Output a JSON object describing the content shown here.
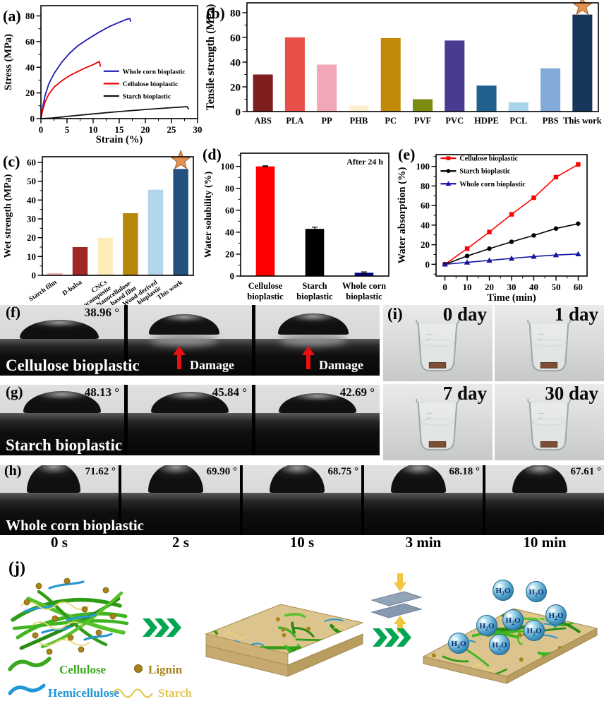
{
  "colors": {
    "accent_red": "#e81111",
    "arrow_green": "#00a651",
    "star_fill": "#df9254",
    "star_edge": "#a55f26",
    "slab_tan": "#dcc48e",
    "h2o_sphere": "#4a9cc6"
  },
  "panels": {
    "a": {
      "label": "(a)"
    },
    "b": {
      "label": "(b)"
    },
    "c": {
      "label": "(c)"
    },
    "d": {
      "label": "(d)"
    },
    "e": {
      "label": "(e)"
    },
    "f": {
      "label": "(f)",
      "name": "Cellulose bioplastic",
      "frames": [
        {
          "angle": "38.96 °"
        },
        {
          "damage": "Damage"
        },
        {
          "damage": "Damage"
        }
      ]
    },
    "g": {
      "label": "(g)",
      "name": "Starch bioplastic",
      "frames": [
        {
          "angle": "48.13 °"
        },
        {
          "angle": "45.84 °"
        },
        {
          "angle": "42.69 °"
        }
      ]
    },
    "h": {
      "label": "(h)",
      "name": "Whole corn bioplastic",
      "frames": [
        {
          "angle": "71.62 °",
          "time": "0 s"
        },
        {
          "angle": "69.90 °",
          "time": "2 s"
        },
        {
          "angle": "68.75 °",
          "time": "10 s"
        },
        {
          "angle": "68.18 °",
          "time": "3 min"
        },
        {
          "angle": "67.61 °",
          "time": "10 min"
        }
      ]
    },
    "i": {
      "label": "(i)",
      "cells": [
        {
          "day": "0 day"
        },
        {
          "day": "1 day"
        },
        {
          "day": "7 day"
        },
        {
          "day": "30 day"
        }
      ]
    },
    "j": {
      "label": "(j)",
      "h2o": "H₂O",
      "legend": [
        {
          "name": "Cellulose",
          "color": "#3aa81e"
        },
        {
          "name": "Lignin",
          "color": "#a8821a"
        },
        {
          "name": "Hemicellulose",
          "color": "#2196d8"
        },
        {
          "name": "Starch",
          "color": "#e3c94e"
        }
      ]
    }
  },
  "chart_data": [
    {
      "id": "a",
      "type": "line",
      "title": "",
      "xlabel": "Strain (%)",
      "ylabel": "Stress (MPa)",
      "xlim": [
        0,
        30
      ],
      "ylim": [
        0,
        88
      ],
      "xticks": [
        0,
        5,
        10,
        15,
        20,
        25,
        30
      ],
      "yticks": [
        0,
        20,
        40,
        60,
        80
      ],
      "x_minor": 2.5,
      "y_minor": 10,
      "legend_position": "right-middle",
      "series": [
        {
          "name": "Whole corn bioplastic",
          "color": "#1c1cb4",
          "x": [
            0,
            0.3,
            0.8,
            1.5,
            2.5,
            4,
            5.5,
            7,
            9,
            11,
            13,
            15,
            16.5,
            17,
            17.2
          ],
          "y": [
            0,
            8,
            18,
            27,
            35,
            44,
            51,
            56.5,
            62,
            67,
            71.5,
            75,
            77.5,
            78,
            75.5
          ]
        },
        {
          "name": "Cellulose bioplastic",
          "color": "#ee0000",
          "x": [
            0,
            0.3,
            0.8,
            1.5,
            2.5,
            4,
            5.5,
            7,
            8.5,
            10,
            11.2,
            11.4
          ],
          "y": [
            0,
            6,
            13,
            19,
            24.5,
            29.5,
            33.5,
            36.5,
            39.5,
            42,
            44.5,
            40.5
          ]
        },
        {
          "name": "Starch bioplastic",
          "color": "#141414",
          "x": [
            0,
            2,
            5,
            10,
            15,
            20,
            25,
            28,
            28.3
          ],
          "y": [
            0,
            0.4,
            1.7,
            3.7,
            5.5,
            7.1,
            8.5,
            9.3,
            7.2
          ]
        }
      ]
    },
    {
      "id": "b",
      "type": "bar",
      "title": "",
      "ylabel": "Tensile strength (MPa)",
      "ylim": [
        0,
        88
      ],
      "yticks": [
        0,
        20,
        40,
        60,
        80
      ],
      "y_minor": 10,
      "categories": [
        "ABS",
        "PLA",
        "PP",
        "PHB",
        "PC",
        "PVF",
        "PVC",
        "HDPE",
        "PCL",
        "PBS",
        "This work"
      ],
      "values": [
        30,
        60,
        38,
        4.8,
        59.5,
        10,
        57.5,
        21,
        7.5,
        35,
        78.5
      ],
      "colors": [
        "#7e1e1e",
        "#e85149",
        "#f2a7b6",
        "#fbf0d2",
        "#c18a08",
        "#7c8c10",
        "#4a3b90",
        "#1f608f",
        "#a9d4ec",
        "#82abd9",
        "#16375c"
      ],
      "star_index": 10
    },
    {
      "id": "c",
      "type": "bar",
      "title": "",
      "ylabel": "Wet strength (MPa)",
      "ylim": [
        0,
        63
      ],
      "yticks": [
        0,
        10,
        20,
        30,
        40,
        50,
        60
      ],
      "y_minor": 5,
      "categories": [
        [
          "Starch film"
        ],
        [
          "D-balsa"
        ],
        [
          "CNCs",
          "nanocomposite"
        ],
        [
          "Nanocellulose-",
          "based film"
        ],
        [
          "Wood-derived",
          "bioplastic"
        ],
        [
          "This work"
        ]
      ],
      "values": [
        1.2,
        15,
        20,
        33,
        45.5,
        56.5
      ],
      "colors": [
        "#f3b6be",
        "#a12626",
        "#fcecba",
        "#b5880a",
        "#b3d5e9",
        "#23507e"
      ],
      "star_index": 5,
      "rotate_labels": true
    },
    {
      "id": "d",
      "type": "bar",
      "title": "",
      "ylabel": "Water solubility (%)",
      "ylim": [
        0,
        112
      ],
      "yticks": [
        0,
        20,
        40,
        60,
        80,
        100
      ],
      "y_minor": 10,
      "categories": [
        [
          "Cellulose",
          "bioplastic"
        ],
        [
          "Starch",
          "bioplastic"
        ],
        [
          "Whole corn",
          "bioplastic"
        ]
      ],
      "values": [
        100,
        43,
        3
      ],
      "errors": [
        0.5,
        1.5,
        0.8
      ],
      "colors": [
        "#ff0000",
        "#000000",
        "#00008b"
      ],
      "annotation": "After 24 h"
    },
    {
      "id": "e",
      "type": "line",
      "title": "",
      "xlabel": "Time (min)",
      "ylabel": "Water absorption (%)",
      "xlim": [
        -4,
        64
      ],
      "ylim": [
        -12,
        112
      ],
      "xticks": [
        0,
        10,
        20,
        30,
        40,
        50,
        60
      ],
      "yticks": [
        0,
        20,
        40,
        60,
        80,
        100
      ],
      "x_minor": 5,
      "y_minor": 10,
      "legend_position": "top-left",
      "series": [
        {
          "name": "Cellulose bioplastic",
          "color": "#ff0000",
          "marker": "square",
          "x": [
            0,
            10,
            20,
            30,
            40,
            50,
            60
          ],
          "y": [
            0,
            16,
            33,
            51,
            68,
            89,
            102
          ]
        },
        {
          "name": "Starch bioplastic",
          "color": "#000000",
          "marker": "circle",
          "x": [
            0,
            10,
            20,
            30,
            40,
            50,
            60
          ],
          "y": [
            0,
            8.5,
            16,
            23,
            29.5,
            36.5,
            41.5
          ]
        },
        {
          "name": "Whole corn bioplastic",
          "color": "#1414a0",
          "marker": "triangle",
          "x": [
            0,
            10,
            20,
            30,
            40,
            50,
            60
          ],
          "y": [
            0,
            2,
            4,
            6,
            8,
            9.5,
            10.5
          ]
        }
      ]
    }
  ]
}
